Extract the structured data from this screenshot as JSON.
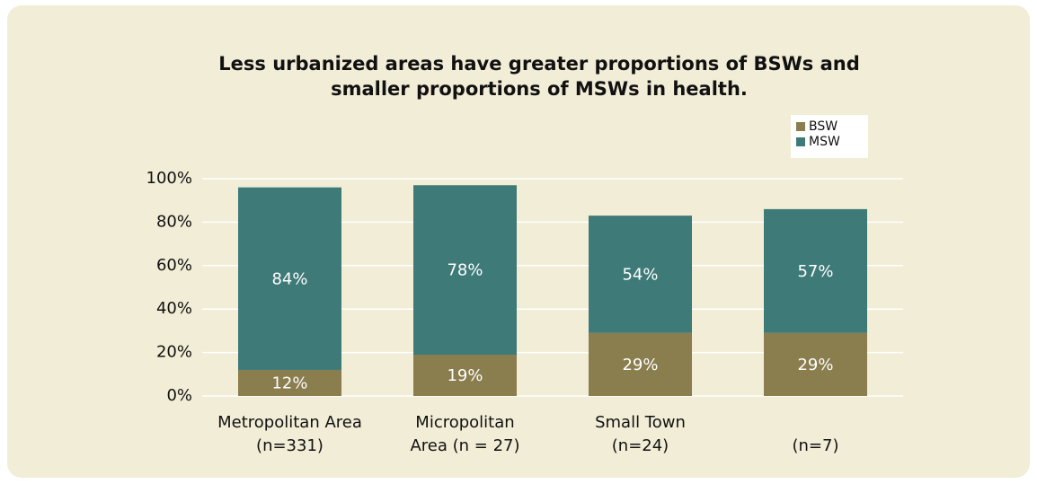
{
  "chart_data": {
    "type": "stacked_bar",
    "title": [
      "Less urbanized areas have greater proportions of BSWs and",
      "smaller proportions of MSWs in health."
    ],
    "categories": [
      [
        "Metropolitan Area",
        "(n=331)"
      ],
      [
        "Micropolitan",
        "Area (n = 27)"
      ],
      [
        "Small Town",
        "(n=24)"
      ],
      [
        "(n=7)"
      ]
    ],
    "series": [
      {
        "name": "BSW",
        "color": "#8a7d4e",
        "values": [
          12,
          19,
          29,
          29
        ],
        "value_labels": [
          "12%",
          "19%",
          "29%",
          "29%"
        ]
      },
      {
        "name": "MSW",
        "color": "#3e7a78",
        "values": [
          84,
          78,
          54,
          57
        ],
        "value_labels": [
          "84%",
          "78%",
          "54%",
          "57%"
        ]
      }
    ],
    "ylim": [
      0,
      100
    ],
    "yticks": [
      {
        "value": 0,
        "label": "0%"
      },
      {
        "value": 20,
        "label": "20%"
      },
      {
        "value": 40,
        "label": "40%"
      },
      {
        "value": 60,
        "label": "60%"
      },
      {
        "value": 80,
        "label": "80%"
      },
      {
        "value": 100,
        "label": "100%"
      }
    ],
    "grid": true,
    "legend": "upper right"
  }
}
